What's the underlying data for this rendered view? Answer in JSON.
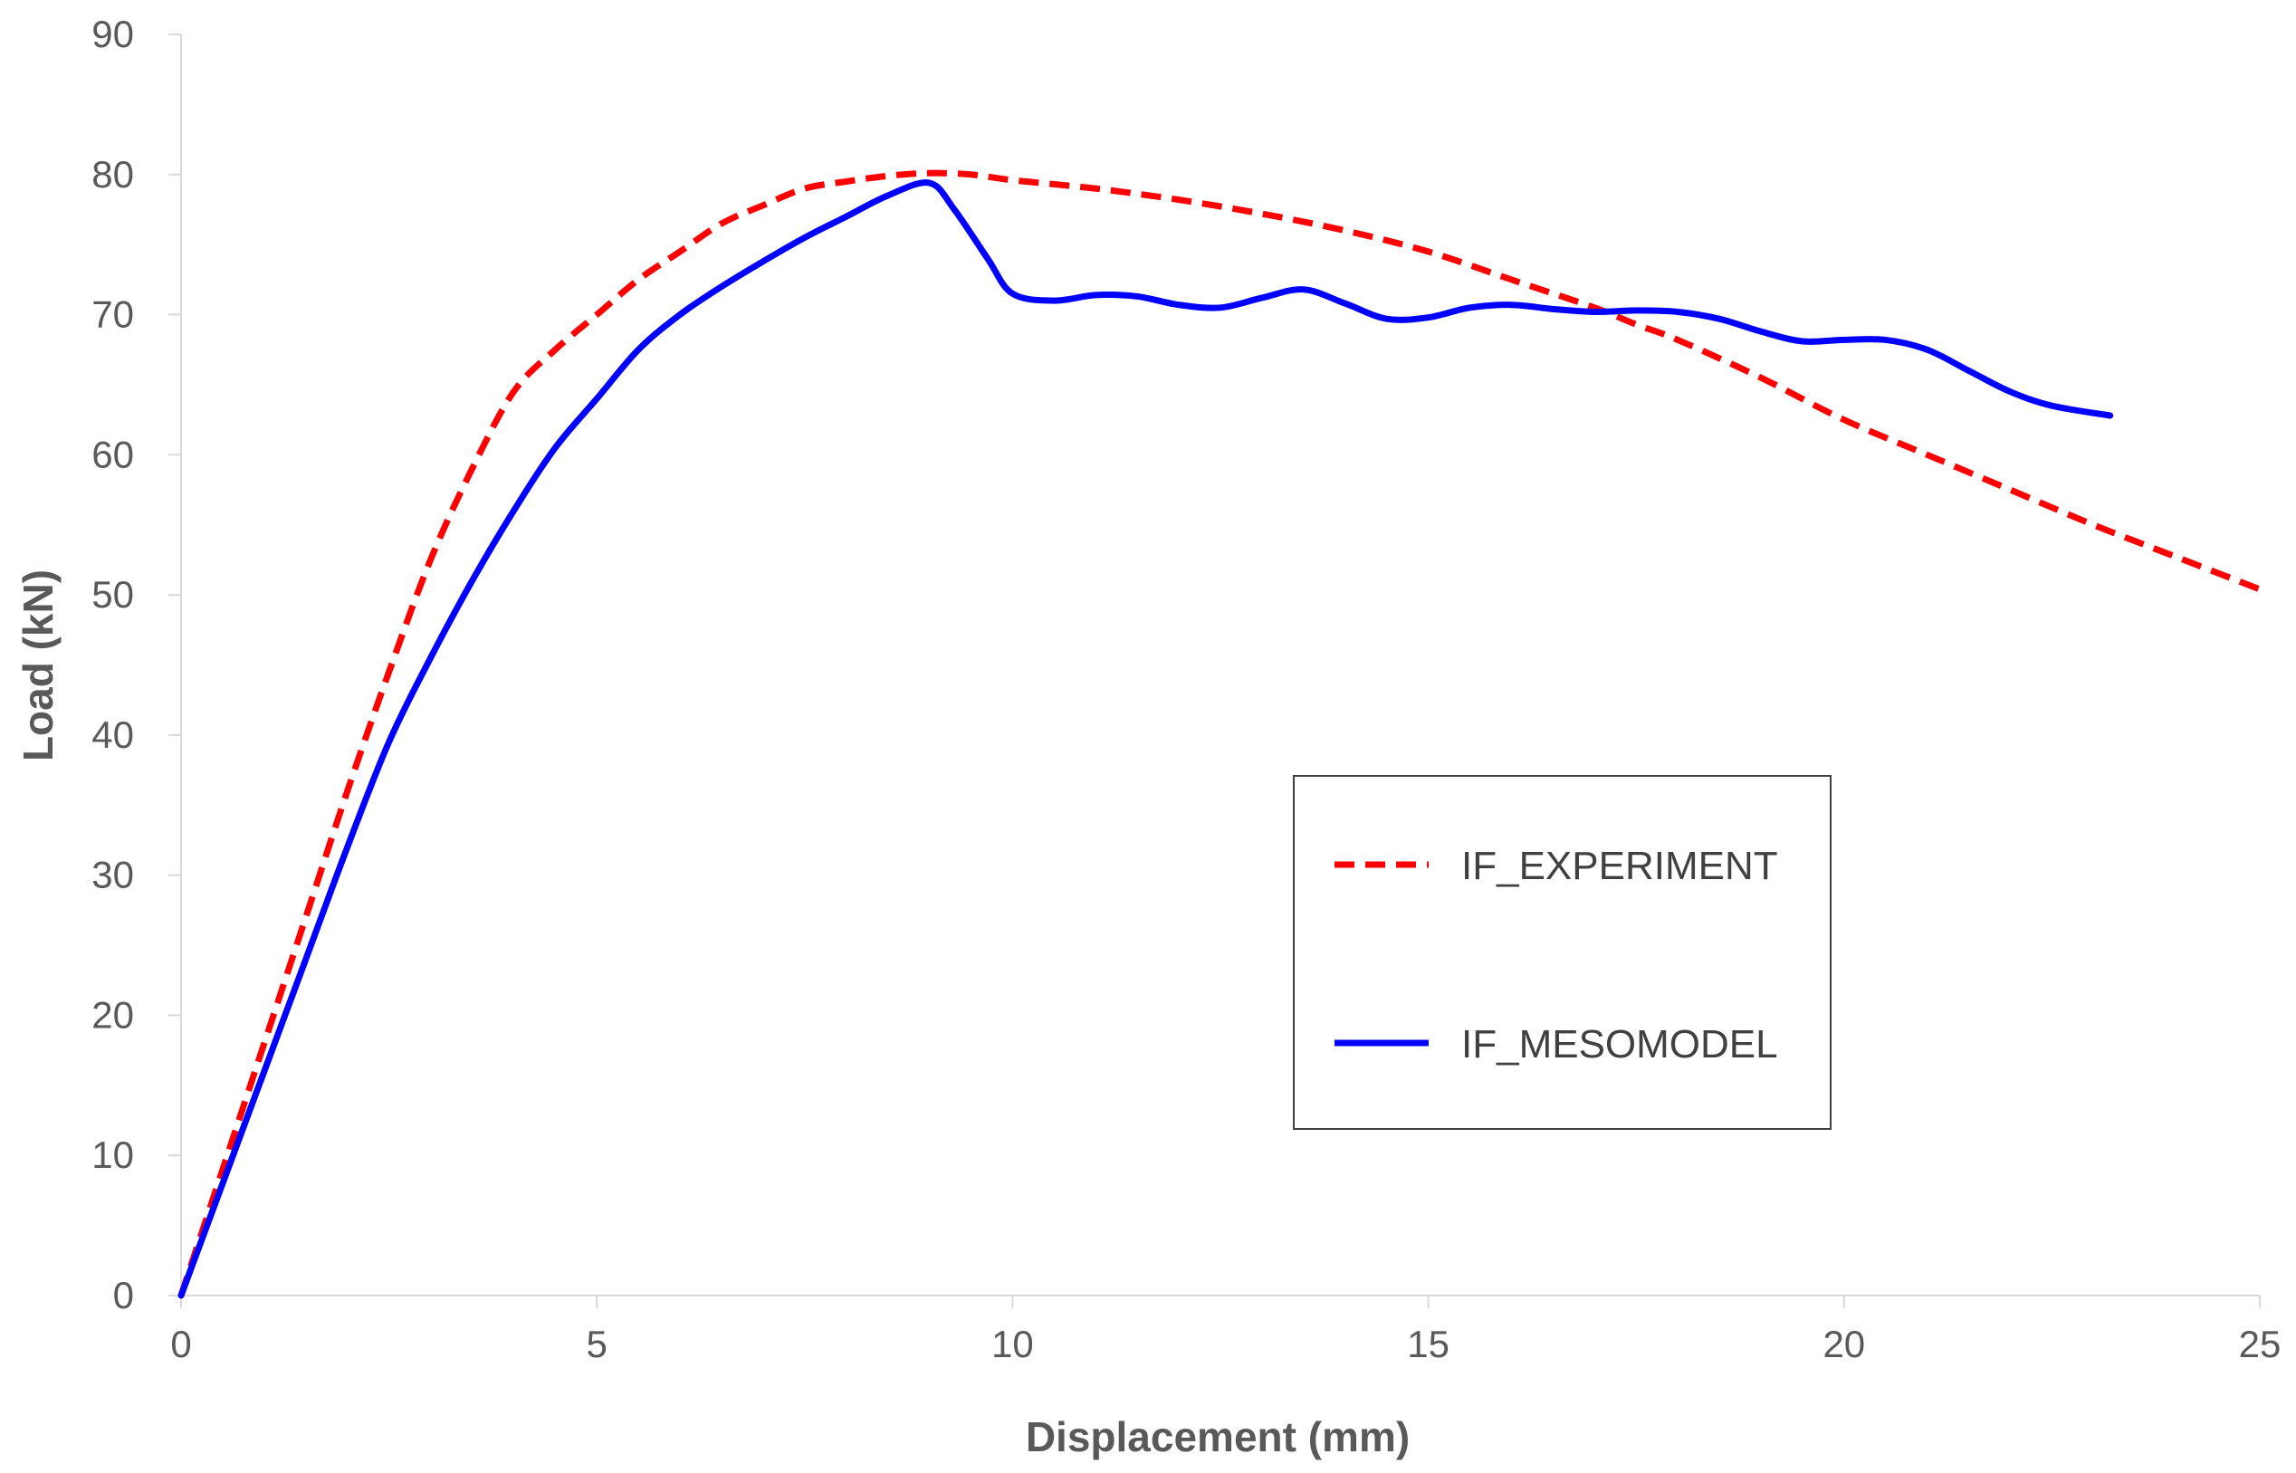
{
  "chart_data": {
    "type": "line",
    "title": "",
    "xlabel": "Displacement (mm)",
    "ylabel": "Load (kN)",
    "xlim": [
      0,
      25
    ],
    "ylim": [
      0,
      90
    ],
    "xticks": [
      "0",
      "5",
      "10",
      "15",
      "20",
      "25"
    ],
    "yticks": [
      "0",
      "10",
      "20",
      "30",
      "40",
      "50",
      "60",
      "70",
      "80",
      "90"
    ],
    "grid": false,
    "legend_position": "center-right",
    "series": [
      {
        "name": "IF_EXPERIMENT",
        "color": "#ff0000",
        "style": "dashed",
        "x": [
          0,
          0.5,
          1,
          1.5,
          2,
          2.5,
          3,
          3.5,
          4,
          4.5,
          5,
          5.5,
          6,
          6.5,
          7,
          7.5,
          8,
          8.5,
          9,
          9.5,
          10,
          11,
          12,
          13,
          14,
          15,
          16,
          17,
          17.5,
          18,
          19,
          20,
          21,
          22,
          23,
          24,
          25
        ],
        "y": [
          0,
          9,
          18,
          27,
          36,
          44.5,
          52.5,
          59,
          64.5,
          67.5,
          70,
          72.5,
          74.5,
          76.5,
          77.8,
          79,
          79.5,
          79.9,
          80.1,
          80,
          79.6,
          79,
          78.2,
          77.2,
          76,
          74.5,
          72.5,
          70.5,
          69.3,
          68.2,
          65.5,
          62.5,
          60,
          57.5,
          55,
          52.7,
          50.4
        ]
      },
      {
        "name": "IF_MESOMODEL",
        "color": "#0000ff",
        "style": "solid",
        "x": [
          0,
          0.5,
          1,
          1.5,
          2,
          2.5,
          3,
          3.5,
          4,
          4.5,
          5,
          5.5,
          6,
          6.5,
          7,
          7.5,
          8,
          8.5,
          9,
          9.3,
          9.7,
          10,
          10.5,
          11,
          11.5,
          12,
          12.5,
          13,
          13.5,
          14,
          14.5,
          15,
          15.5,
          16,
          16.5,
          17,
          17.5,
          18,
          18.5,
          19,
          19.5,
          20,
          20.5,
          21,
          21.5,
          22,
          22.5,
          23.2
        ],
        "y": [
          0,
          8,
          16,
          24,
          32,
          39.5,
          45.5,
          51,
          56,
          60.5,
          64,
          67.5,
          70,
          72,
          73.8,
          75.5,
          77,
          78.5,
          79.4,
          77.5,
          74,
          71.5,
          71,
          71.4,
          71.3,
          70.7,
          70.5,
          71.2,
          71.8,
          70.8,
          69.7,
          69.8,
          70.5,
          70.7,
          70.4,
          70.2,
          70.3,
          70.2,
          69.7,
          68.8,
          68.1,
          68.2,
          68.2,
          67.5,
          66,
          64.5,
          63.5,
          62.8
        ]
      }
    ]
  }
}
